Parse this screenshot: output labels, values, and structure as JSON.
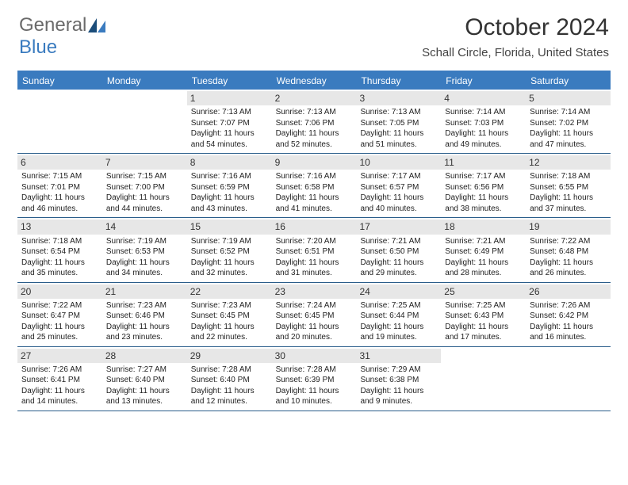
{
  "logo": {
    "line1": "General",
    "line2": "Blue"
  },
  "title": "October 2024",
  "location": "Schall Circle, Florida, United States",
  "colors": {
    "header_bg": "#3a7bbf",
    "header_text": "#ffffff",
    "border": "#2a5d8a",
    "daynum_bg": "#e7e7e7",
    "text": "#222222",
    "logo_gray": "#6a6a6a",
    "logo_blue": "#3a7bbf"
  },
  "day_headers": [
    "Sunday",
    "Monday",
    "Tuesday",
    "Wednesday",
    "Thursday",
    "Friday",
    "Saturday"
  ],
  "weeks": [
    [
      {
        "n": "",
        "sunrise": "",
        "sunset": "",
        "daylight": ""
      },
      {
        "n": "",
        "sunrise": "",
        "sunset": "",
        "daylight": ""
      },
      {
        "n": "1",
        "sunrise": "Sunrise: 7:13 AM",
        "sunset": "Sunset: 7:07 PM",
        "daylight": "Daylight: 11 hours and 54 minutes."
      },
      {
        "n": "2",
        "sunrise": "Sunrise: 7:13 AM",
        "sunset": "Sunset: 7:06 PM",
        "daylight": "Daylight: 11 hours and 52 minutes."
      },
      {
        "n": "3",
        "sunrise": "Sunrise: 7:13 AM",
        "sunset": "Sunset: 7:05 PM",
        "daylight": "Daylight: 11 hours and 51 minutes."
      },
      {
        "n": "4",
        "sunrise": "Sunrise: 7:14 AM",
        "sunset": "Sunset: 7:03 PM",
        "daylight": "Daylight: 11 hours and 49 minutes."
      },
      {
        "n": "5",
        "sunrise": "Sunrise: 7:14 AM",
        "sunset": "Sunset: 7:02 PM",
        "daylight": "Daylight: 11 hours and 47 minutes."
      }
    ],
    [
      {
        "n": "6",
        "sunrise": "Sunrise: 7:15 AM",
        "sunset": "Sunset: 7:01 PM",
        "daylight": "Daylight: 11 hours and 46 minutes."
      },
      {
        "n": "7",
        "sunrise": "Sunrise: 7:15 AM",
        "sunset": "Sunset: 7:00 PM",
        "daylight": "Daylight: 11 hours and 44 minutes."
      },
      {
        "n": "8",
        "sunrise": "Sunrise: 7:16 AM",
        "sunset": "Sunset: 6:59 PM",
        "daylight": "Daylight: 11 hours and 43 minutes."
      },
      {
        "n": "9",
        "sunrise": "Sunrise: 7:16 AM",
        "sunset": "Sunset: 6:58 PM",
        "daylight": "Daylight: 11 hours and 41 minutes."
      },
      {
        "n": "10",
        "sunrise": "Sunrise: 7:17 AM",
        "sunset": "Sunset: 6:57 PM",
        "daylight": "Daylight: 11 hours and 40 minutes."
      },
      {
        "n": "11",
        "sunrise": "Sunrise: 7:17 AM",
        "sunset": "Sunset: 6:56 PM",
        "daylight": "Daylight: 11 hours and 38 minutes."
      },
      {
        "n": "12",
        "sunrise": "Sunrise: 7:18 AM",
        "sunset": "Sunset: 6:55 PM",
        "daylight": "Daylight: 11 hours and 37 minutes."
      }
    ],
    [
      {
        "n": "13",
        "sunrise": "Sunrise: 7:18 AM",
        "sunset": "Sunset: 6:54 PM",
        "daylight": "Daylight: 11 hours and 35 minutes."
      },
      {
        "n": "14",
        "sunrise": "Sunrise: 7:19 AM",
        "sunset": "Sunset: 6:53 PM",
        "daylight": "Daylight: 11 hours and 34 minutes."
      },
      {
        "n": "15",
        "sunrise": "Sunrise: 7:19 AM",
        "sunset": "Sunset: 6:52 PM",
        "daylight": "Daylight: 11 hours and 32 minutes."
      },
      {
        "n": "16",
        "sunrise": "Sunrise: 7:20 AM",
        "sunset": "Sunset: 6:51 PM",
        "daylight": "Daylight: 11 hours and 31 minutes."
      },
      {
        "n": "17",
        "sunrise": "Sunrise: 7:21 AM",
        "sunset": "Sunset: 6:50 PM",
        "daylight": "Daylight: 11 hours and 29 minutes."
      },
      {
        "n": "18",
        "sunrise": "Sunrise: 7:21 AM",
        "sunset": "Sunset: 6:49 PM",
        "daylight": "Daylight: 11 hours and 28 minutes."
      },
      {
        "n": "19",
        "sunrise": "Sunrise: 7:22 AM",
        "sunset": "Sunset: 6:48 PM",
        "daylight": "Daylight: 11 hours and 26 minutes."
      }
    ],
    [
      {
        "n": "20",
        "sunrise": "Sunrise: 7:22 AM",
        "sunset": "Sunset: 6:47 PM",
        "daylight": "Daylight: 11 hours and 25 minutes."
      },
      {
        "n": "21",
        "sunrise": "Sunrise: 7:23 AM",
        "sunset": "Sunset: 6:46 PM",
        "daylight": "Daylight: 11 hours and 23 minutes."
      },
      {
        "n": "22",
        "sunrise": "Sunrise: 7:23 AM",
        "sunset": "Sunset: 6:45 PM",
        "daylight": "Daylight: 11 hours and 22 minutes."
      },
      {
        "n": "23",
        "sunrise": "Sunrise: 7:24 AM",
        "sunset": "Sunset: 6:45 PM",
        "daylight": "Daylight: 11 hours and 20 minutes."
      },
      {
        "n": "24",
        "sunrise": "Sunrise: 7:25 AM",
        "sunset": "Sunset: 6:44 PM",
        "daylight": "Daylight: 11 hours and 19 minutes."
      },
      {
        "n": "25",
        "sunrise": "Sunrise: 7:25 AM",
        "sunset": "Sunset: 6:43 PM",
        "daylight": "Daylight: 11 hours and 17 minutes."
      },
      {
        "n": "26",
        "sunrise": "Sunrise: 7:26 AM",
        "sunset": "Sunset: 6:42 PM",
        "daylight": "Daylight: 11 hours and 16 minutes."
      }
    ],
    [
      {
        "n": "27",
        "sunrise": "Sunrise: 7:26 AM",
        "sunset": "Sunset: 6:41 PM",
        "daylight": "Daylight: 11 hours and 14 minutes."
      },
      {
        "n": "28",
        "sunrise": "Sunrise: 7:27 AM",
        "sunset": "Sunset: 6:40 PM",
        "daylight": "Daylight: 11 hours and 13 minutes."
      },
      {
        "n": "29",
        "sunrise": "Sunrise: 7:28 AM",
        "sunset": "Sunset: 6:40 PM",
        "daylight": "Daylight: 11 hours and 12 minutes."
      },
      {
        "n": "30",
        "sunrise": "Sunrise: 7:28 AM",
        "sunset": "Sunset: 6:39 PM",
        "daylight": "Daylight: 11 hours and 10 minutes."
      },
      {
        "n": "31",
        "sunrise": "Sunrise: 7:29 AM",
        "sunset": "Sunset: 6:38 PM",
        "daylight": "Daylight: 11 hours and 9 minutes."
      },
      {
        "n": "",
        "sunrise": "",
        "sunset": "",
        "daylight": ""
      },
      {
        "n": "",
        "sunrise": "",
        "sunset": "",
        "daylight": ""
      }
    ]
  ]
}
